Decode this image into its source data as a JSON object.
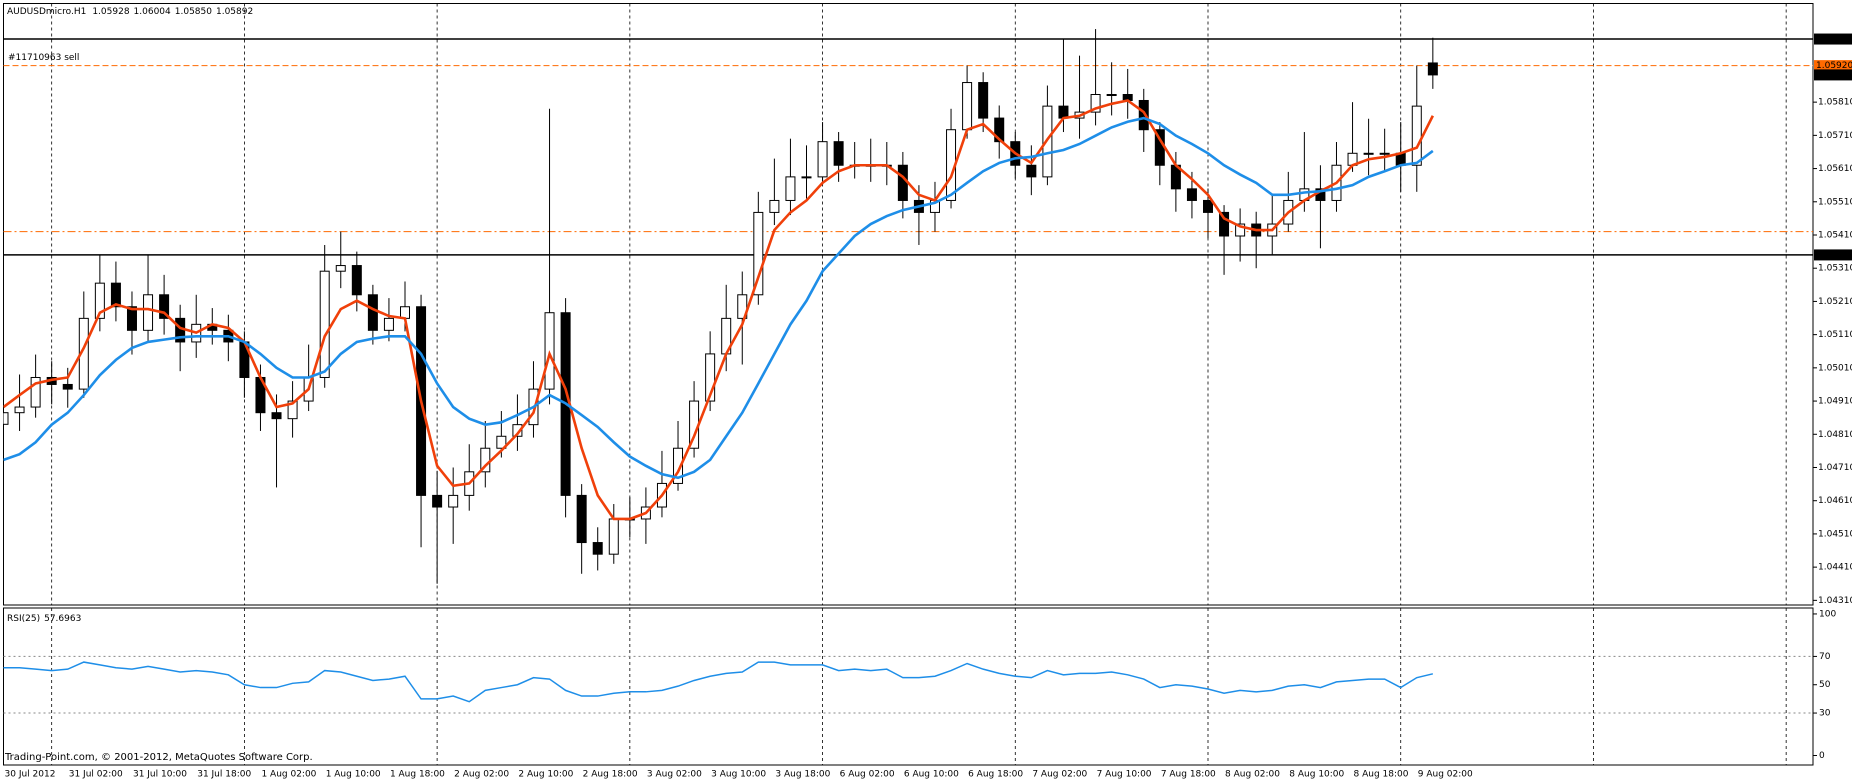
{
  "chart_data": [
    {
      "type": "candlestick",
      "title": "AUDUSDmicro.H1",
      "last_labels": {
        "open": "1.05928",
        "high": "1.06004",
        "low": "1.05850",
        "close": "1.05892"
      },
      "categories": [
        "30 Jul 2012",
        null,
        null,
        null,
        "31 Jul 02:00",
        null,
        null,
        null,
        "31 Jul 10:00",
        null,
        null,
        null,
        "31 Jul 18:00",
        null,
        null,
        null,
        "1 Aug 02:00",
        null,
        null,
        null,
        "1 Aug 10:00",
        null,
        null,
        null,
        "1 Aug 18:00",
        null,
        null,
        null,
        "2 Aug 02:00",
        null,
        null,
        null,
        "2 Aug 10:00",
        null,
        null,
        null,
        "2 Aug 18:00",
        null,
        null,
        null,
        "3 Aug 02:00",
        null,
        null,
        null,
        "3 Aug 10:00",
        null,
        null,
        null,
        "3 Aug 18:00",
        null,
        null,
        null,
        "6 Aug 02:00",
        null,
        null,
        null,
        "6 Aug 10:00",
        null,
        null,
        null,
        "6 Aug 18:00",
        null,
        null,
        null,
        "7 Aug 02:00",
        null,
        null,
        null,
        "7 Aug 10:00",
        null,
        null,
        null,
        "7 Aug 18:00",
        null,
        null,
        null,
        "8 Aug 02:00",
        null,
        null,
        null,
        "8 Aug 10:00",
        null,
        null,
        null,
        "8 Aug 18:00",
        null,
        null,
        null,
        "9 Aug 02:00",
        null
      ],
      "open": [
        1.0484,
        1.04875,
        1.04892,
        1.04981,
        1.0496,
        1.04946,
        1.05159,
        1.05265,
        1.05194,
        1.05123,
        1.0523,
        1.05159,
        1.05088,
        1.05141,
        1.05123,
        1.05088,
        1.04981,
        1.04875,
        1.04857,
        1.0491,
        1.04981,
        1.05301,
        1.05318,
        1.0523,
        1.05123,
        1.05159,
        1.05194,
        1.04626,
        1.04591,
        1.04626,
        1.04697,
        1.04768,
        1.04804,
        1.04839,
        1.04946,
        1.05176,
        1.04626,
        1.04484,
        1.04449,
        1.04555,
        1.04555,
        1.04591,
        1.04662,
        1.04768,
        1.0491,
        1.05052,
        1.05159,
        1.0523,
        1.05478,
        1.05514,
        1.05585,
        1.05585,
        1.05691,
        1.0562,
        1.0562,
        1.0562,
        1.0562,
        1.05514,
        1.05478,
        1.05514,
        1.05727,
        1.05869,
        1.05762,
        1.05691,
        1.0562,
        1.05585,
        1.05798,
        1.05762,
        1.0578,
        1.05833,
        1.05833,
        1.05815,
        1.05727,
        1.0562,
        1.05549,
        1.05514,
        1.05478,
        1.05407,
        1.05443,
        1.05407,
        1.05443,
        1.05514,
        1.05549,
        1.05514,
        1.0562,
        1.05656,
        1.05656,
        1.05656,
        1.0562,
        1.05928
      ],
      "high": [
        1.0493,
        1.0499,
        1.0505,
        1.0503,
        1.0501,
        1.0524,
        1.0535,
        1.0533,
        1.0524,
        1.0535,
        1.0529,
        1.052,
        1.0523,
        1.0519,
        1.0517,
        1.0512,
        1.0502,
        1.0493,
        1.0497,
        1.0508,
        1.0538,
        1.0542,
        1.0536,
        1.0526,
        1.0522,
        1.0527,
        1.0523,
        1.047,
        1.0471,
        1.0478,
        1.0485,
        1.0488,
        1.0493,
        1.0503,
        1.0579,
        1.0522,
        1.0466,
        1.0453,
        1.046,
        1.0462,
        1.0465,
        1.0476,
        1.0485,
        1.0497,
        1.0512,
        1.0526,
        1.053,
        1.0554,
        1.0564,
        1.057,
        1.0568,
        1.0575,
        1.0572,
        1.0569,
        1.057,
        1.0569,
        1.0566,
        1.0556,
        1.0557,
        1.0579,
        1.0592,
        1.059,
        1.058,
        1.0572,
        1.0568,
        1.0586,
        1.06,
        1.0595,
        1.0603,
        1.0593,
        1.0591,
        1.0585,
        1.0575,
        1.0566,
        1.056,
        1.0555,
        1.055,
        1.0549,
        1.0548,
        1.0553,
        1.056,
        1.0572,
        1.0562,
        1.0569,
        1.0581,
        1.0576,
        1.0573,
        1.0575,
        1.0592,
        1.06004
      ],
      "low": [
        1.048,
        1.0482,
        1.0486,
        1.049,
        1.0489,
        1.0492,
        1.0512,
        1.0515,
        1.0505,
        1.0509,
        1.0511,
        1.05,
        1.0504,
        1.0508,
        1.0503,
        1.0492,
        1.0482,
        1.0465,
        1.048,
        1.0488,
        1.0495,
        1.0525,
        1.0518,
        1.0508,
        1.0509,
        1.0512,
        1.0447,
        1.0436,
        1.0448,
        1.0458,
        1.0465,
        1.0474,
        1.0476,
        1.048,
        1.049,
        1.0456,
        1.0439,
        1.044,
        1.0442,
        1.045,
        1.0448,
        1.0456,
        1.0464,
        1.0474,
        1.0488,
        1.05,
        1.0502,
        1.052,
        1.0544,
        1.0547,
        1.0552,
        1.0556,
        1.0557,
        1.0558,
        1.0557,
        1.0556,
        1.0546,
        1.0538,
        1.0542,
        1.0549,
        1.057,
        1.0572,
        1.0564,
        1.0558,
        1.0553,
        1.0556,
        1.0572,
        1.057,
        1.0574,
        1.0577,
        1.0576,
        1.0566,
        1.0556,
        1.0548,
        1.0546,
        1.054,
        1.0529,
        1.0533,
        1.0531,
        1.0535,
        1.0542,
        1.0548,
        1.0537,
        1.0548,
        1.056,
        1.0559,
        1.056,
        1.0554,
        1.0554,
        1.0585
      ],
      "close": [
        1.04875,
        1.04892,
        1.04981,
        1.0496,
        1.04946,
        1.05159,
        1.05265,
        1.05194,
        1.05123,
        1.0523,
        1.05159,
        1.05088,
        1.05141,
        1.05123,
        1.05088,
        1.04981,
        1.04875,
        1.04857,
        1.0491,
        1.04981,
        1.05301,
        1.05318,
        1.0523,
        1.05123,
        1.05159,
        1.05194,
        1.04626,
        1.04591,
        1.04626,
        1.04697,
        1.04768,
        1.04804,
        1.04839,
        1.04946,
        1.05176,
        1.04626,
        1.04484,
        1.04449,
        1.04555,
        1.04555,
        1.04591,
        1.04662,
        1.04768,
        1.0491,
        1.05052,
        1.05159,
        1.0523,
        1.05478,
        1.05514,
        1.05585,
        1.05585,
        1.05691,
        1.0562,
        1.0562,
        1.0562,
        1.0562,
        1.05514,
        1.05478,
        1.05514,
        1.05727,
        1.05869,
        1.05762,
        1.05691,
        1.0562,
        1.05585,
        1.05798,
        1.05762,
        1.0578,
        1.05833,
        1.05833,
        1.05815,
        1.05727,
        1.0562,
        1.05549,
        1.05514,
        1.05478,
        1.05407,
        1.05443,
        1.05407,
        1.05443,
        1.05514,
        1.05549,
        1.05514,
        1.0562,
        1.05656,
        1.05656,
        1.05656,
        1.0562,
        1.05798,
        1.05892
      ],
      "up_color": "#ffffff",
      "down_color": "#000000",
      "series": [
        {
          "color": "#f0400a",
          "values": [
            1.04892,
            1.04928,
            1.04963,
            1.04974,
            1.04981,
            1.0507,
            1.05176,
            1.05201,
            1.05187,
            1.05187,
            1.05176,
            1.0513,
            1.05116,
            1.05141,
            1.0513,
            1.05088,
            1.04981,
            1.04892,
            1.04903,
            1.04946,
            1.05105,
            1.05187,
            1.05212,
            1.05187,
            1.05166,
            1.05159,
            1.0491,
            1.04715,
            1.04655,
            1.04662,
            1.04715,
            1.04761,
            1.04811,
            1.04875,
            1.05052,
            1.04946,
            1.04768,
            1.04626,
            1.04555,
            1.04555,
            1.04573,
            1.04626,
            1.04697,
            1.04804,
            1.04928,
            1.05052,
            1.05141,
            1.05283,
            1.05425,
            1.05478,
            1.05514,
            1.05567,
            1.05602,
            1.0562,
            1.0562,
            1.0562,
            1.05585,
            1.05531,
            1.05514,
            1.05585,
            1.05727,
            1.05744,
            1.05698,
            1.05656,
            1.05627,
            1.05698,
            1.05762,
            1.05769,
            1.05791,
            1.05805,
            1.05815,
            1.0578,
            1.05698,
            1.0562,
            1.05578,
            1.05531,
            1.0546,
            1.05436,
            1.05425,
            1.05425,
            1.05478,
            1.05514,
            1.05542,
            1.05567,
            1.0562,
            1.05638,
            1.05645,
            1.05656,
            1.05673,
            1.05769
          ]
        },
        {
          "color": "#1e8ee8",
          "values": [
            1.04733,
            1.0475,
            1.04786,
            1.04839,
            1.04875,
            1.04928,
            1.04988,
            1.05034,
            1.0507,
            1.05088,
            1.05095,
            1.05102,
            1.05105,
            1.05105,
            1.05105,
            1.05088,
            1.05052,
            1.0501,
            1.04981,
            1.04981,
            1.04999,
            1.05052,
            1.05088,
            1.05098,
            1.05105,
            1.05105,
            1.05052,
            1.04963,
            1.04892,
            1.04857,
            1.04839,
            1.04846,
            1.04868,
            1.04892,
            1.04928,
            1.04903,
            1.04868,
            1.04832,
            1.04786,
            1.04743,
            1.04715,
            1.0469,
            1.04679,
            1.04697,
            1.04733,
            1.04804,
            1.04875,
            1.04963,
            1.05052,
            1.05141,
            1.05212,
            1.05301,
            1.05354,
            1.05407,
            1.05443,
            1.05467,
            1.05485,
            1.05496,
            1.05507,
            1.05531,
            1.05567,
            1.05602,
            1.05627,
            1.05641,
            1.05645,
            1.05656,
            1.05666,
            1.05684,
            1.05709,
            1.05734,
            1.05751,
            1.05762,
            1.05744,
            1.05709,
            1.05684,
            1.05656,
            1.0562,
            1.05592,
            1.05567,
            1.05531,
            1.05531,
            1.05538,
            1.05542,
            1.05549,
            1.0556,
            1.05585,
            1.05602,
            1.0562,
            1.05627,
            1.05663
          ]
        }
      ],
      "ylim": [
        1.04296,
        1.06107
      ],
      "yticks": [
        {
          "value": 1.0581,
          "label": "1.05810"
        },
        {
          "value": 1.0571,
          "label": "1.05710"
        },
        {
          "value": 1.0561,
          "label": "1.05610"
        },
        {
          "value": 1.0551,
          "label": "1.05510"
        },
        {
          "value": 1.0541,
          "label": "1.05410"
        },
        {
          "value": 1.0531,
          "label": "1.05310"
        },
        {
          "value": 1.0521,
          "label": "1.05210"
        },
        {
          "value": 1.0511,
          "label": "1.05110"
        },
        {
          "value": 1.0501,
          "label": "1.05010"
        },
        {
          "value": 1.0491,
          "label": "1.04910"
        },
        {
          "value": 1.0481,
          "label": "1.04810"
        },
        {
          "value": 1.0471,
          "label": "1.04710"
        },
        {
          "value": 1.0461,
          "label": "1.04610"
        },
        {
          "value": 1.0451,
          "label": "1.04510"
        },
        {
          "value": 1.0441,
          "label": "1.04410"
        },
        {
          "value": 1.0431,
          "label": "1.04310"
        }
      ],
      "levels": [
        {
          "value": 1.06,
          "label": "1.06000",
          "color": "#000000",
          "style": "solid"
        },
        {
          "value": 1.0535,
          "label": "1.05350",
          "color": "#000000",
          "style": "solid"
        },
        {
          "value": 1.0592,
          "label": "1.05920",
          "name": "#11710963 sell",
          "color": "#ff6a00",
          "style": "dash"
        },
        {
          "value": 1.0542,
          "color": "#ff6a00",
          "style": "dashdot"
        }
      ]
    },
    {
      "type": "line",
      "title": "RSI(25)",
      "color": "#1e8ee8",
      "values": [
        62,
        62,
        61,
        60,
        61,
        66,
        64,
        62,
        61,
        63,
        61,
        59,
        60,
        59,
        57,
        50,
        48,
        48,
        51,
        52,
        60,
        59,
        56,
        53,
        54,
        56,
        40,
        40,
        42,
        38,
        46,
        48,
        50,
        55,
        54,
        46,
        42,
        42,
        44,
        45,
        45,
        46,
        49,
        53,
        56,
        58,
        59,
        66,
        66,
        64,
        64,
        64,
        60,
        61,
        60,
        61,
        55,
        55,
        56,
        60,
        65,
        61,
        58,
        56,
        55,
        60,
        57,
        58,
        58,
        59,
        57,
        54,
        48,
        50,
        49,
        47,
        44,
        46,
        45,
        46,
        49,
        50,
        48,
        52,
        53,
        54,
        54,
        48,
        55,
        57.6963
      ],
      "ylim": [
        -6.7,
        104.2
      ],
      "yticks": [
        0,
        30,
        50,
        70,
        100
      ],
      "levels": [
        30,
        70
      ],
      "annotation": "Trading-Point.com, © 2001-2012, MetaQuotes Software Corp."
    }
  ]
}
